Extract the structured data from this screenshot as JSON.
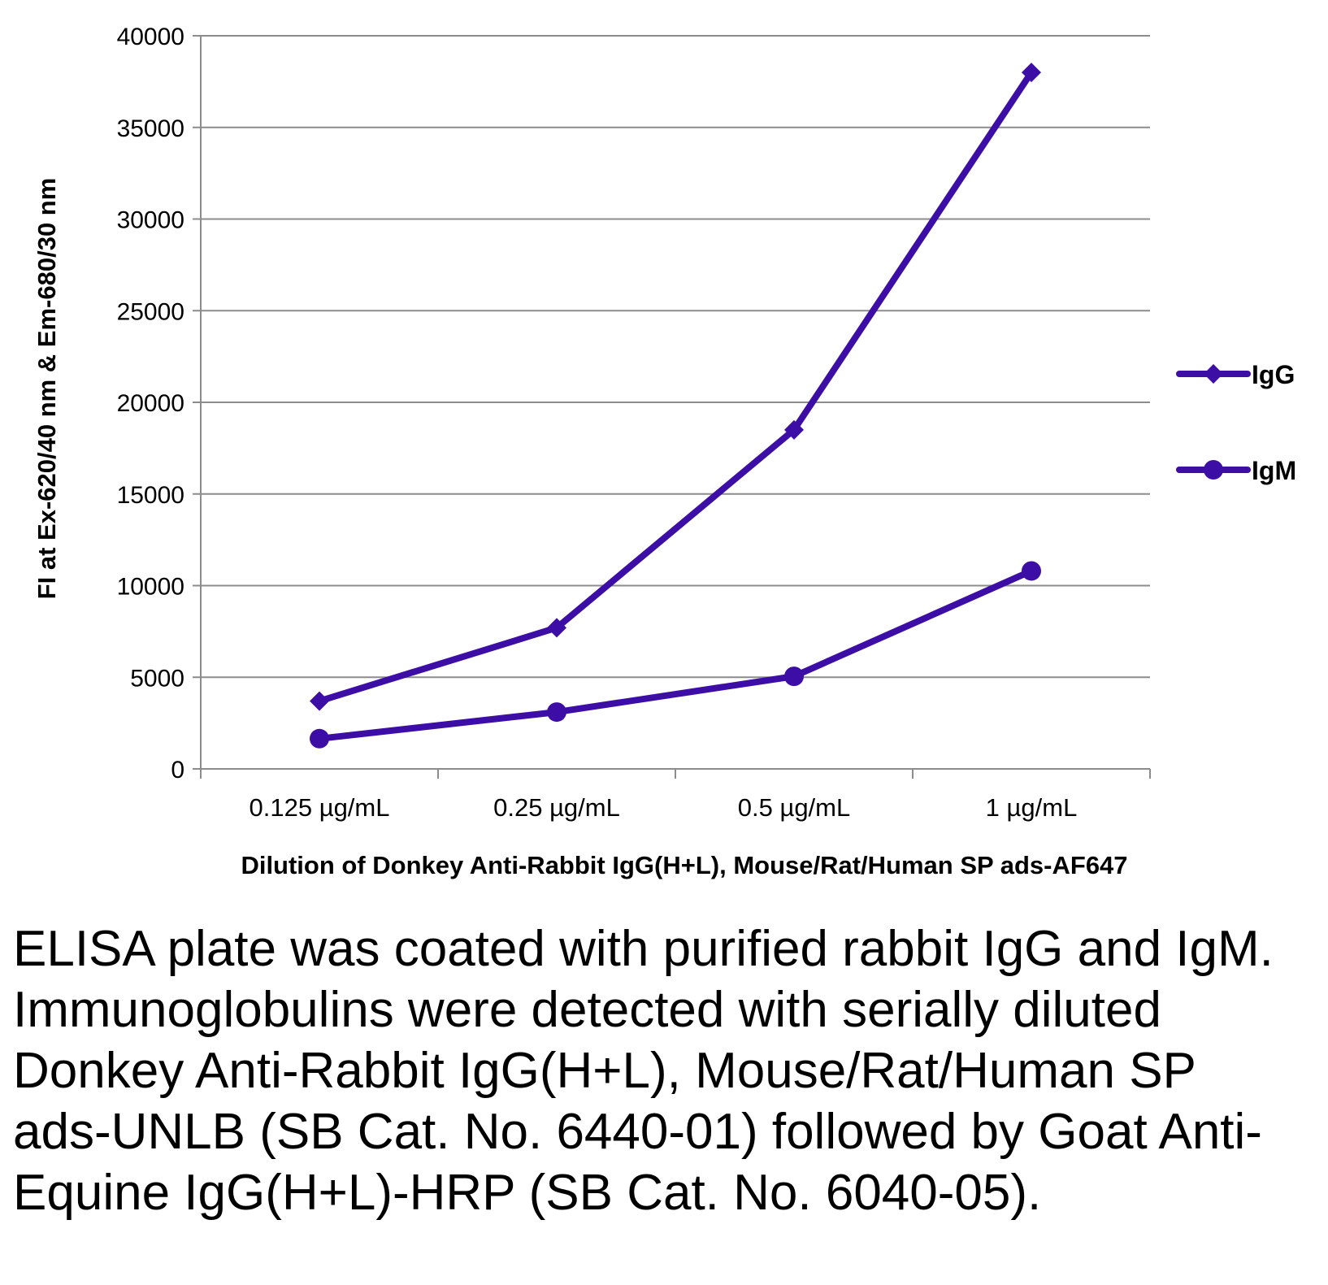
{
  "chart_data": {
    "type": "line",
    "categories": [
      "0.125 µg/mL",
      "0.25 µg/mL",
      "0.5 µg/mL",
      "1 µg/mL"
    ],
    "series": [
      {
        "name": "IgG",
        "marker": "diamond",
        "values": [
          3700,
          7700,
          18500,
          38000
        ]
      },
      {
        "name": "IgM",
        "marker": "circle",
        "values": [
          1650,
          3100,
          5050,
          10800
        ]
      }
    ],
    "xlabel": "Dilution of Donkey Anti-Rabbit IgG(H+L), Mouse/Rat/Human SP ads-AF647",
    "ylabel": "FI at Ex-620/40 nm & Em-680/30 nm",
    "ylim": [
      0,
      40000
    ],
    "yticks": [
      0,
      5000,
      10000,
      15000,
      20000,
      25000,
      30000,
      35000,
      40000
    ],
    "grid": true,
    "legend": "right",
    "line_color": "#3d0ea6"
  },
  "caption": "ELISA plate was coated with purified rabbit IgG and IgM.  Immunoglobulins were detected with serially diluted Donkey Anti-Rabbit IgG(H+L), Mouse/Rat/Human SP ads-UNLB (SB Cat. No. 6440-01) followed by Goat Anti-Equine IgG(H+L)-HRP (SB Cat. No. 6040-05)."
}
